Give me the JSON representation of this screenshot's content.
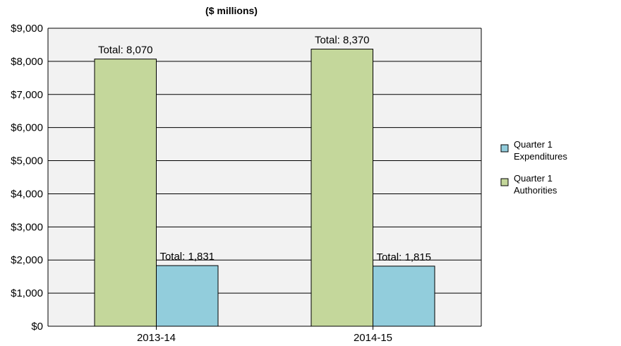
{
  "chart_data": {
    "type": "bar",
    "title": "($ millions)",
    "xlabel": "",
    "ylabel": "",
    "categories": [
      "2013-14",
      "2014-15"
    ],
    "series": [
      {
        "name": "Quarter 1 Authorities",
        "legend_lines": [
          "Quarter 1",
          "Authorities"
        ],
        "color": "#c4d79b",
        "values": [
          8070,
          8370
        ],
        "labels": [
          "Total: 8,070",
          "Total: 8,370"
        ]
      },
      {
        "name": "Quarter 1 Expenditures",
        "legend_lines": [
          "Quarter 1",
          "Expenditures"
        ],
        "color": "#92cddc",
        "values": [
          1831,
          1815
        ],
        "labels": [
          "Total: 1,831",
          "Total: 1,815"
        ]
      }
    ],
    "legend_order": [
      1,
      0
    ],
    "ylim": [
      0,
      9000
    ],
    "yticks": [
      0,
      1000,
      2000,
      3000,
      4000,
      5000,
      6000,
      7000,
      8000,
      9000
    ],
    "ytick_labels": [
      "$0",
      "$1,000",
      "$2,000",
      "$3,000",
      "$4,000",
      "$5,000",
      "$6,000",
      "$7,000",
      "$8,000",
      "$9,000"
    ],
    "grid": true,
    "plot_background": "#f2f2f2",
    "legend_position": "right"
  }
}
